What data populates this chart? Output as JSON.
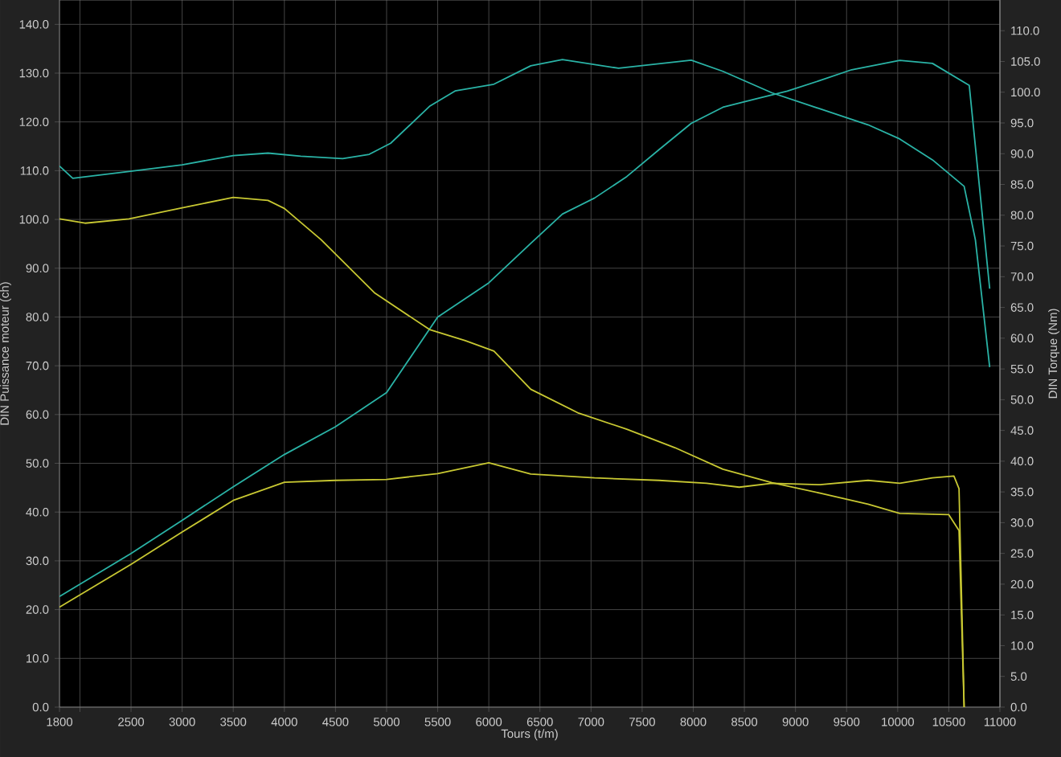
{
  "chart_data": {
    "type": "line",
    "xlabel": "Tours (t/m)",
    "ylabel": "DIN Puissance moteur (ch)",
    "y2label": "DIN Torque (Nm)",
    "xlim": [
      1800,
      11000
    ],
    "ylim": [
      0,
      145
    ],
    "y2lim": [
      0,
      115
    ],
    "xticks": [
      1800,
      {
        "value": 2000,
        "label": null
      },
      2500,
      3000,
      3500,
      4000,
      4500,
      5000,
      5500,
      6000,
      6500,
      7000,
      7500,
      8000,
      8500,
      9000,
      9500,
      10000,
      10500,
      11000
    ],
    "yticks": [
      {
        "value": 0,
        "label": "0.0"
      },
      {
        "value": 10,
        "label": "10.0"
      },
      {
        "value": 20,
        "label": "20.0"
      },
      {
        "value": 30,
        "label": "30.0"
      },
      {
        "value": 40,
        "label": "40.0"
      },
      {
        "value": 50,
        "label": "50.0"
      },
      {
        "value": 60,
        "label": "60.0"
      },
      {
        "value": 70,
        "label": "70.0"
      },
      {
        "value": 80,
        "label": "80.0"
      },
      {
        "value": 90,
        "label": "90.0"
      },
      {
        "value": 100,
        "label": "100.0"
      },
      {
        "value": 110,
        "label": "110.0"
      },
      {
        "value": 120,
        "label": "120.0"
      },
      {
        "value": 130,
        "label": "130.0"
      },
      {
        "value": 140,
        "label": "140.0"
      }
    ],
    "y2ticks": [
      {
        "value": 0,
        "label": "0.0"
      },
      {
        "value": 5,
        "label": "5.0"
      },
      {
        "value": 10,
        "label": "10.0"
      },
      {
        "value": 15,
        "label": "15.0"
      },
      {
        "value": 20,
        "label": "20.0"
      },
      {
        "value": 25,
        "label": "25.0"
      },
      {
        "value": 30,
        "label": "30.0"
      },
      {
        "value": 35,
        "label": "35.0"
      },
      {
        "value": 40,
        "label": "40.0"
      },
      {
        "value": 45,
        "label": "45.0"
      },
      {
        "value": 50,
        "label": "50.0"
      },
      {
        "value": 55,
        "label": "55.0"
      },
      {
        "value": 60,
        "label": "60.0"
      },
      {
        "value": 65,
        "label": "65.0"
      },
      {
        "value": 70,
        "label": "70.0"
      },
      {
        "value": 75,
        "label": "75.0"
      },
      {
        "value": 80,
        "label": "80.0"
      },
      {
        "value": 85,
        "label": "85.0"
      },
      {
        "value": 90,
        "label": "90.0"
      },
      {
        "value": 95,
        "label": "95.0"
      },
      {
        "value": 100,
        "label": "100.0"
      },
      {
        "value": 105,
        "label": "105.0"
      },
      {
        "value": 110,
        "label": "110.0"
      }
    ],
    "grid": true,
    "marker": "none",
    "line_style": "solid",
    "series": [
      {
        "color": "#2ab3a6",
        "x": [
          1800,
          2500,
          3000,
          3500,
          4000,
          4500,
          5000,
          5500,
          6000,
          6410,
          6720,
          7035,
          7350,
          7665,
          7980,
          8290,
          8610,
          8920,
          9240,
          9550,
          10020,
          10340,
          10700,
          10900
        ],
        "values": [
          22.7,
          31.5,
          38.3,
          45.2,
          51.8,
          57.5,
          64.5,
          80,
          87,
          95.1,
          101.1,
          104.4,
          108.8,
          114.3,
          119.7,
          123,
          124.7,
          126.3,
          128.5,
          130.7,
          132.6,
          132,
          127.5,
          85.8
        ]
      },
      {
        "color": "#2ab3a6",
        "axis": "y2",
        "x": [
          1800,
          1930,
          2480,
          3000,
          3500,
          3840,
          4160,
          4570,
          4830,
          5040,
          5420,
          5670,
          6050,
          6410,
          6720,
          7270,
          7980,
          8290,
          8770,
          9240,
          9710,
          10020,
          10340,
          10650,
          10760,
          10900
        ],
        "values": [
          88,
          86,
          87.1,
          88.2,
          89.7,
          90.1,
          89.6,
          89.2,
          89.9,
          91.7,
          97.7,
          100.2,
          101.3,
          104.3,
          105.3,
          103.9,
          105.2,
          103.4,
          99.9,
          97.3,
          94.7,
          92.4,
          89,
          84.7,
          76,
          55.3
        ]
      },
      {
        "color": "#c8c832",
        "x": [
          1800,
          2500,
          3000,
          3500,
          4000,
          4500,
          5000,
          5500,
          6000,
          6410,
          7035,
          7665,
          8130,
          8450,
          8770,
          9240,
          9710,
          10020,
          10340,
          10550,
          10600,
          10650
        ],
        "values": [
          20.5,
          29.3,
          35.9,
          42.4,
          46.1,
          46.5,
          46.7,
          47.9,
          50.1,
          47.8,
          47,
          46.5,
          45.9,
          45.1,
          45.9,
          45.6,
          46.5,
          45.9,
          47,
          47.4,
          44.8,
          0
        ]
      },
      {
        "color": "#c8c832",
        "axis": "y2",
        "x": [
          1800,
          2050,
          2480,
          3000,
          3500,
          3840,
          4000,
          4360,
          4880,
          5420,
          5770,
          6050,
          6410,
          6880,
          7350,
          7820,
          8290,
          8770,
          9240,
          9710,
          10020,
          10500,
          10600,
          10650
        ],
        "values": [
          79.4,
          78.7,
          79.4,
          81.2,
          82.9,
          82.4,
          81.1,
          76,
          67.4,
          61.4,
          59.6,
          57.9,
          51.7,
          47.8,
          45.2,
          42.2,
          38.7,
          36.5,
          34.8,
          33,
          31.5,
          31.3,
          28.7,
          0
        ]
      }
    ]
  }
}
